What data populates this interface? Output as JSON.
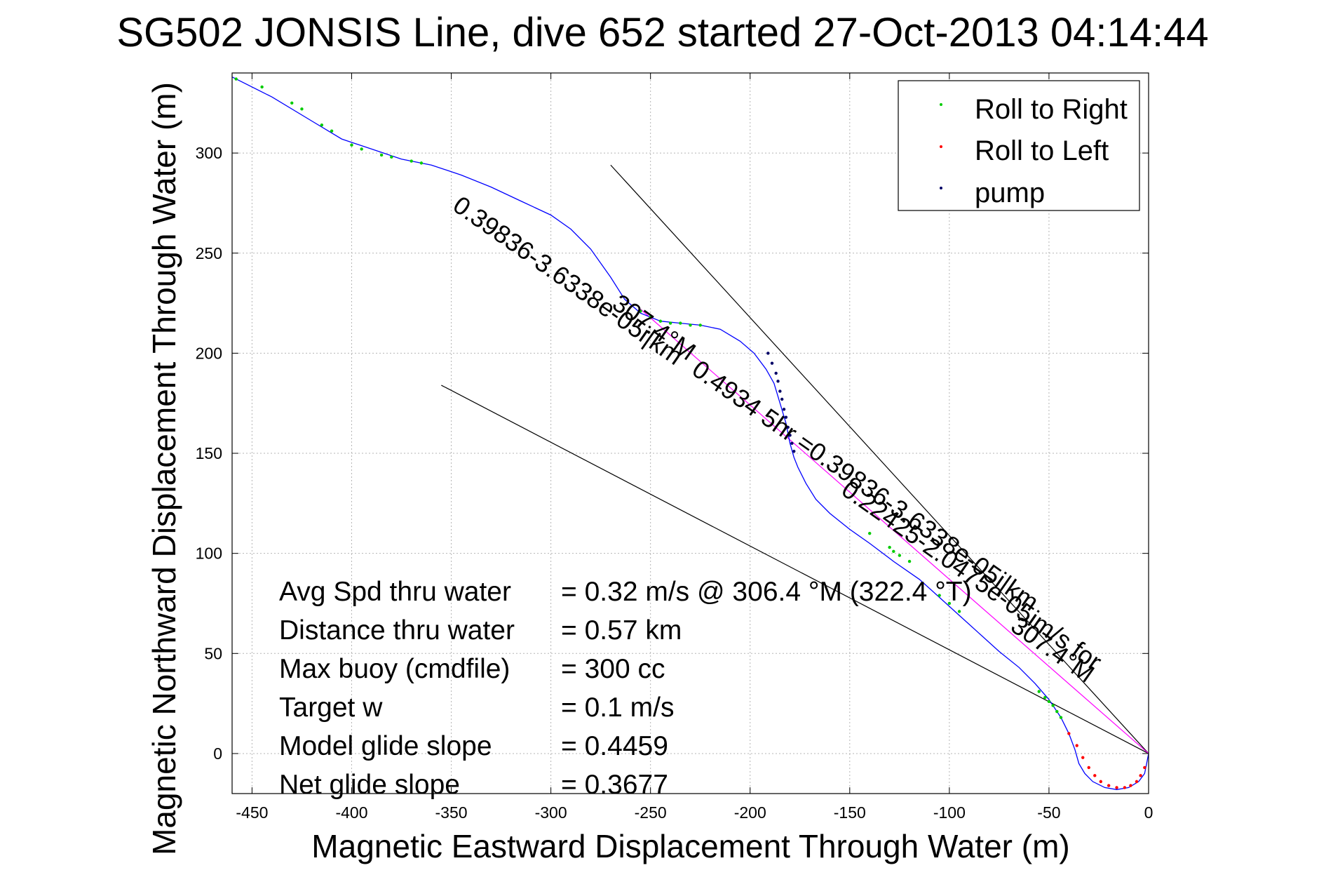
{
  "chart_data": {
    "type": "line",
    "title": "SG502 JONSIS Line, dive 652 started 27-Oct-2013 04:14:44",
    "xlabel": "Magnetic Eastward Displacement Through Water (m)",
    "ylabel": "Magnetic Northward Displacement Through Water (m)",
    "xlim": [
      -460,
      0
    ],
    "ylim": [
      -20,
      340
    ],
    "xticks": [
      -450,
      -400,
      -350,
      -300,
      -250,
      -200,
      -150,
      -100,
      -50,
      0
    ],
    "yticks": [
      0,
      50,
      100,
      150,
      200,
      250,
      300
    ],
    "grid": true,
    "legend": {
      "position": "top-right",
      "entries": [
        {
          "label": "Roll to Right",
          "color": "#00cc00"
        },
        {
          "label": "Roll to Left",
          "color": "#ff0000"
        },
        {
          "label": "pump",
          "color": "#000066"
        }
      ]
    },
    "track": {
      "name": "",
      "color": "#0000ff",
      "x": [
        -460,
        -440,
        -420,
        -405,
        -390,
        -375,
        -360,
        -345,
        -330,
        -315,
        -300,
        -290,
        -280,
        -270,
        -263,
        -255,
        -245,
        -235,
        -225,
        -215,
        -205,
        -198,
        -192,
        -188,
        -185,
        -182,
        -180,
        -178,
        -176,
        -172,
        -167,
        -160,
        -150,
        -140,
        -128,
        -115,
        -105,
        -95,
        -85,
        -75,
        -65,
        -57,
        -50,
        -44,
        -40,
        -37,
        -35,
        -32,
        -28,
        -22,
        -16,
        -10,
        -5,
        -2,
        -1,
        0
      ],
      "y": [
        338,
        328,
        316,
        307,
        302,
        297,
        294,
        289,
        283,
        276,
        269,
        262,
        252,
        238,
        227,
        220,
        216,
        215,
        214,
        212,
        206,
        200,
        192,
        185,
        175,
        165,
        155,
        148,
        143,
        135,
        127,
        120,
        112,
        105,
        96,
        87,
        78,
        69,
        60,
        51,
        43,
        35,
        27,
        18,
        10,
        2,
        -5,
        -10,
        -14,
        -17,
        -18,
        -17,
        -14,
        -10,
        -5,
        0
      ]
    },
    "markers": {
      "roll_right": {
        "color": "#00cc00",
        "x": [
          -458,
          -445,
          -430,
          -425,
          -415,
          -410,
          -400,
          -395,
          -385,
          -380,
          -370,
          -365,
          -255,
          -250,
          -245,
          -240,
          -235,
          -230,
          -225,
          -140,
          -130,
          -128,
          -125,
          -120,
          -105,
          -100,
          -95,
          -55,
          -52,
          -50,
          -48,
          -46,
          -44
        ],
        "y": [
          337,
          333,
          325,
          322,
          314,
          311,
          304,
          302,
          299,
          298,
          296,
          295,
          221,
          218,
          216,
          215,
          215,
          214,
          214,
          110,
          103,
          101,
          99,
          96,
          79,
          75,
          71,
          31,
          28,
          26,
          24,
          21,
          18
        ]
      },
      "roll_left": {
        "color": "#ff0000",
        "x": [
          -40,
          -36,
          -33,
          -30,
          -27,
          -24,
          -20,
          -16,
          -12,
          -9,
          -6,
          -4,
          -2
        ],
        "y": [
          10,
          4,
          -2,
          -7,
          -11,
          -14,
          -16,
          -17,
          -17,
          -16,
          -14,
          -11,
          -7
        ]
      },
      "pump": {
        "color": "#000066",
        "x": [
          -191,
          -189,
          -187,
          -186,
          -185,
          -184,
          -183,
          -182,
          -181,
          -180,
          -179,
          -178
        ],
        "y": [
          200,
          195,
          190,
          186,
          181,
          177,
          172,
          168,
          163,
          159,
          155,
          151
        ]
      }
    },
    "lines": [
      {
        "name": "",
        "color": "#000000",
        "x": [
          -270,
          0
        ],
        "y": [
          294,
          0
        ]
      },
      {
        "name": "",
        "color": "#000000",
        "x": [
          -355,
          0
        ],
        "y": [
          184,
          0
        ]
      },
      {
        "name": "",
        "color": "#ff00ff",
        "x": [
          -255,
          0
        ],
        "y": [
          222,
          0
        ]
      }
    ],
    "stats": [
      {
        "label": "Avg Spd thru water",
        "value": "=  0.32 m/s @ 306.4  °M (322.4 °T)"
      },
      {
        "label": "Distance thru water",
        "value": "=  0.57 km"
      },
      {
        "label": "Max buoy (cmdfile)",
        "value": "= 300 cc"
      },
      {
        "label": "Target w",
        "value": "= 0.1 m/s"
      },
      {
        "label": "Model glide slope",
        "value": "= 0.4459"
      },
      {
        "label": "Net glide slope",
        "value": "= 0.3677"
      }
    ],
    "annotations": [
      {
        "text": "0.39836-3.6338e-05i|km",
        "x": -350,
        "y": 272,
        "angle": 35
      },
      {
        "text": "307.4°M",
        "x": -270,
        "y": 223,
        "angle": 35
      },
      {
        "text": "0.4934 5hr =0.39836-3.6338e-05i|km",
        "x": -230,
        "y": 190,
        "angle": 35
      },
      {
        "text": "0.22425-2.0475e-05im/s for",
        "x": -155,
        "y": 130,
        "angle": 35
      },
      {
        "text": "307.4°M",
        "x": -70,
        "y": 62,
        "angle": 35
      }
    ]
  }
}
